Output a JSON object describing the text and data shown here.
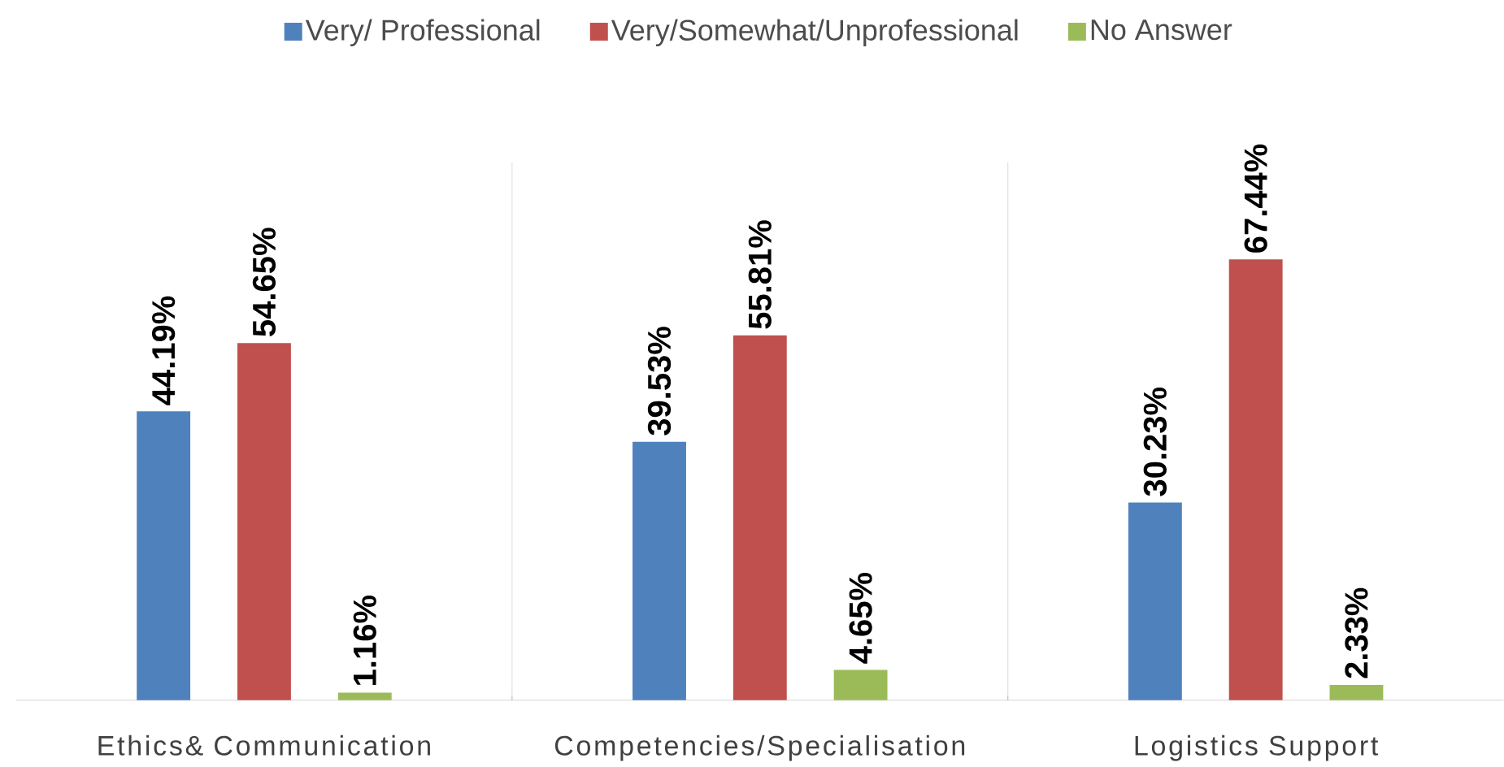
{
  "chart_data": {
    "type": "bar",
    "categories": [
      "Ethics& Communication",
      "Competencies/Specialisation",
      "Logistics Support"
    ],
    "series": [
      {
        "name": "Very/ Professional",
        "color": "#4f81bd",
        "values": [
          44.19,
          39.53,
          30.23
        ],
        "value_labels": [
          "44.19%",
          "39.53%",
          "30.23%"
        ]
      },
      {
        "name": "Very/Somewhat/Unprofessional",
        "color": "#c0504d",
        "values": [
          54.65,
          55.81,
          67.44
        ],
        "value_labels": [
          "54.65%",
          "55.81%",
          "67.44%"
        ]
      },
      {
        "name": "No Answer",
        "color": "#9bbb59",
        "values": [
          1.16,
          4.65,
          2.33
        ],
        "value_labels": [
          "1.16%",
          "4.65%",
          "2.33%"
        ]
      }
    ],
    "legend": "top"
  }
}
